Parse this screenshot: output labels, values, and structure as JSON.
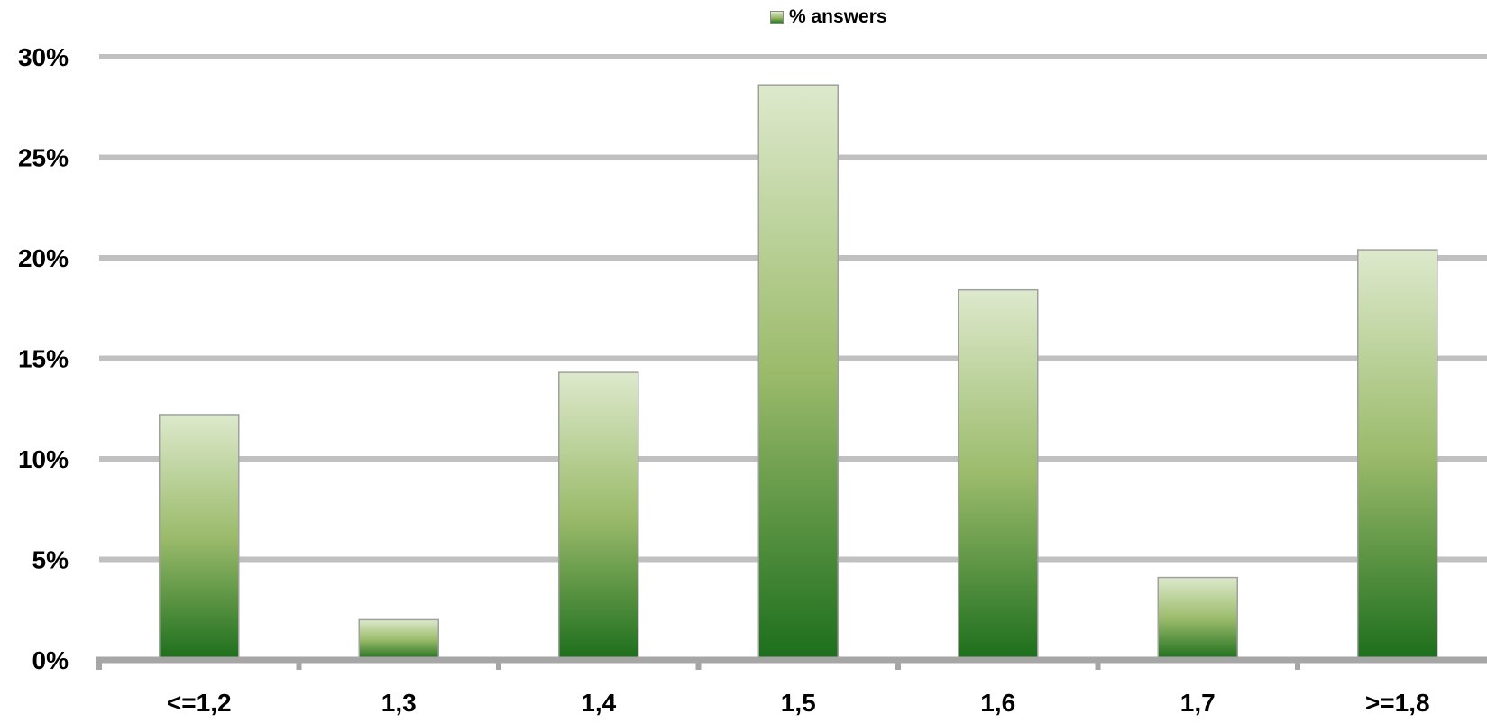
{
  "colors": {
    "gridline": "#c0c0c0",
    "axis": "#a6a6a6",
    "bar_border": "#a0a0a0",
    "bar_gradient_top": "#dde9cc",
    "bar_gradient_mid": "#9bbb6b",
    "bar_gradient_bottom": "#1c6e1c",
    "text": "#000000"
  },
  "chart_data": {
    "type": "bar",
    "categories": [
      "<=1,2",
      "1,3",
      "1,4",
      "1,5",
      "1,6",
      "1,7",
      ">=1,8"
    ],
    "series": [
      {
        "name": "% answers",
        "values": [
          12.2,
          2.0,
          14.3,
          28.6,
          18.4,
          4.1,
          20.4
        ]
      }
    ],
    "y_ticks": [
      0,
      5,
      10,
      15,
      20,
      25,
      30
    ],
    "y_tick_labels": [
      "0%",
      "5%",
      "10%",
      "15%",
      "20%",
      "25%",
      "30%"
    ],
    "ylim": [
      0,
      30
    ],
    "grid": true,
    "legend_position": "top-center",
    "title": "",
    "xlabel": "",
    "ylabel": ""
  }
}
